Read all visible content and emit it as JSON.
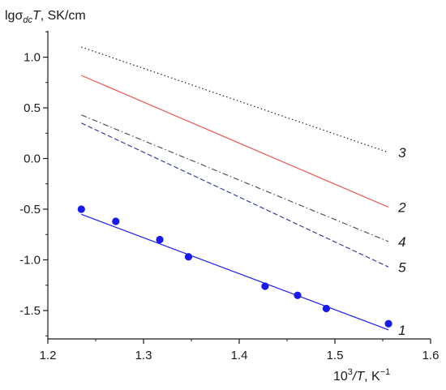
{
  "chart_data": {
    "type": "line",
    "ylabel": {
      "base": "lgσ",
      "sub": "dc",
      "var": "T",
      "unit": ", SK/cm"
    },
    "xlabel": {
      "base": "10",
      "sup1": "3",
      "var": "/T",
      "unit": ", K",
      "sup2": "−1"
    },
    "xlim": [
      1.2,
      1.6
    ],
    "ylim": [
      -1.78,
      1.26
    ],
    "x_ticks": [
      1.2,
      1.3,
      1.4,
      1.5,
      1.6
    ],
    "x_tick_labels": [
      "1.2",
      "1.3",
      "1.4",
      "1.5",
      "1.6"
    ],
    "y_ticks": [
      -1.5,
      -1.0,
      -0.5,
      0.0,
      0.5,
      1.0
    ],
    "y_tick_labels": [
      "-1.5",
      "-1.0",
      "-0.5",
      "0.0",
      "0.5",
      "1.0"
    ],
    "grid": false,
    "scatter": {
      "name": "1",
      "color": "#1a1aee",
      "x": [
        1.235,
        1.271,
        1.317,
        1.347,
        1.427,
        1.461,
        1.491,
        1.556
      ],
      "y": [
        -0.5,
        -0.62,
        -0.8,
        -0.97,
        -1.26,
        -1.35,
        -1.48,
        -1.63
      ]
    },
    "series": [
      {
        "name": "1",
        "color": "#1a1aee",
        "dash": "solid",
        "x": [
          1.235,
          1.556
        ],
        "y": [
          -0.55,
          -1.69
        ]
      },
      {
        "name": "2",
        "color": "#e8584f",
        "dash": "solid",
        "x": [
          1.235,
          1.556
        ],
        "y": [
          0.82,
          -0.48
        ]
      },
      {
        "name": "3",
        "color": "#222222",
        "dash": "dotted",
        "x": [
          1.235,
          1.556
        ],
        "y": [
          1.1,
          0.06
        ]
      },
      {
        "name": "4",
        "color": "#555555",
        "dash": "dashdot",
        "x": [
          1.235,
          1.556
        ],
        "y": [
          0.43,
          -0.82
        ]
      },
      {
        "name": "5",
        "color": "#3a3f9e",
        "dash": "dashed",
        "x": [
          1.235,
          1.556
        ],
        "y": [
          0.35,
          -1.07
        ]
      }
    ]
  }
}
